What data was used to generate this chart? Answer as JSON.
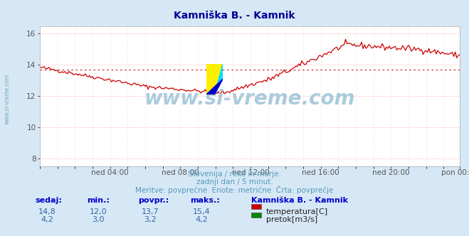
{
  "title": "Kamniška B. - Kamnik",
  "title_color": "#000099",
  "bg_color": "#d6e8f5",
  "plot_bg_color": "#ffffff",
  "grid_color_h": "#ffaaaa",
  "grid_color_v": "#ffcccc",
  "x_tick_labels": [
    "ned 04:00",
    "ned 08:00",
    "ned 12:00",
    "ned 16:00",
    "ned 20:00",
    "pon 00:00"
  ],
  "x_tick_positions": [
    48,
    96,
    144,
    192,
    240,
    287
  ],
  "ylim": [
    7.5,
    16.5
  ],
  "yticks": [
    8,
    10,
    12,
    14,
    16
  ],
  "watermark_text": "www.si-vreme.com",
  "watermark_color": "#aaccdd",
  "subtitle1": "Slovenija / reke in morje.",
  "subtitle2": "zadnji dan / 5 minut.",
  "subtitle3": "Meritve: povprečne  Enote: metrične  Črta: povprečje",
  "subtitle_color": "#5599bb",
  "table_headers": [
    "sedaj:",
    "min.:",
    "povpr.:",
    "maks.:"
  ],
  "row1_values": [
    "14,8",
    "12,0",
    "13,7",
    "15,4"
  ],
  "row2_values": [
    "4,2",
    "3,0",
    "3,2",
    "4,2"
  ],
  "row_label": "Kamniška B. - Kamnik",
  "legend1": "temperatura[C]",
  "legend2": "pretok[m3/s]",
  "temp_color": "#cc0000",
  "flow_color": "#008800",
  "avg_temp": 13.7,
  "avg_flow": 3.2,
  "n_points": 288,
  "header_color": "#0000cc",
  "value_color": "#3366aa",
  "left_label_color": "#7aaabb"
}
